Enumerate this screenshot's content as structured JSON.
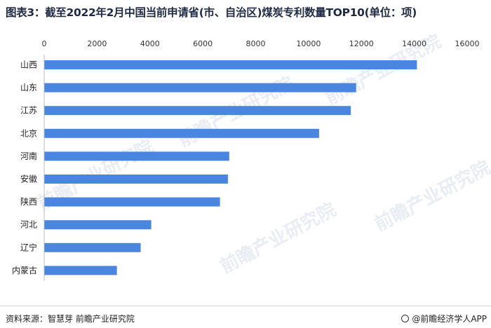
{
  "colors": {
    "bar": "#4a86e0",
    "grid": "#ececec",
    "footer_line": "#d8d8d8"
  },
  "footer": {
    "source": "资料来源：智慧芽 前瞻产业研究院",
    "brand": "@前瞻经济学人APP"
  },
  "watermark": "前瞻产业研究院",
  "chart_data": {
    "type": "bar",
    "orientation": "horizontal",
    "title": "图表3：截至2022年2月中国当前申请省(市、自治区)煤炭专利数量TOP10(单位：项)",
    "categories": [
      "山西",
      "山东",
      "江苏",
      "北京",
      "河南",
      "安徽",
      "陕西",
      "河北",
      "辽宁",
      "内蒙古"
    ],
    "values": [
      14100,
      11800,
      11600,
      10400,
      7000,
      6950,
      6650,
      4050,
      3650,
      2750
    ],
    "xlim": [
      0,
      16000
    ],
    "xticks": [
      0,
      2000,
      4000,
      6000,
      8000,
      10000,
      12000,
      14000,
      16000
    ],
    "xtick_position": "top",
    "grid": false,
    "legend": "none"
  }
}
